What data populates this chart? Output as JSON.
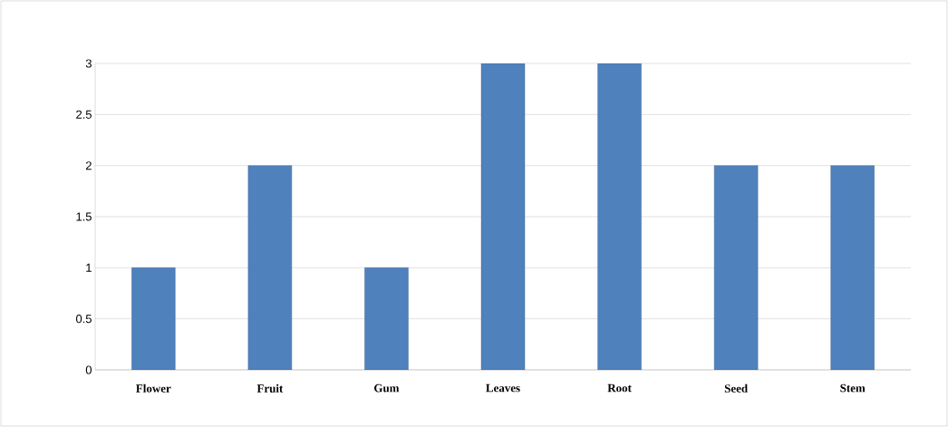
{
  "chart_data": {
    "type": "bar",
    "categories": [
      "Flower",
      "Fruit",
      "Gum",
      "Leaves",
      "Root",
      "Seed",
      "Stem"
    ],
    "values": [
      1,
      2,
      1,
      3,
      3,
      2,
      2
    ],
    "color": "#4f81bd",
    "ylim": [
      0,
      3
    ],
    "yticks": [
      0,
      0.5,
      1,
      1.5,
      2,
      2.5,
      3
    ],
    "grid": "y"
  }
}
